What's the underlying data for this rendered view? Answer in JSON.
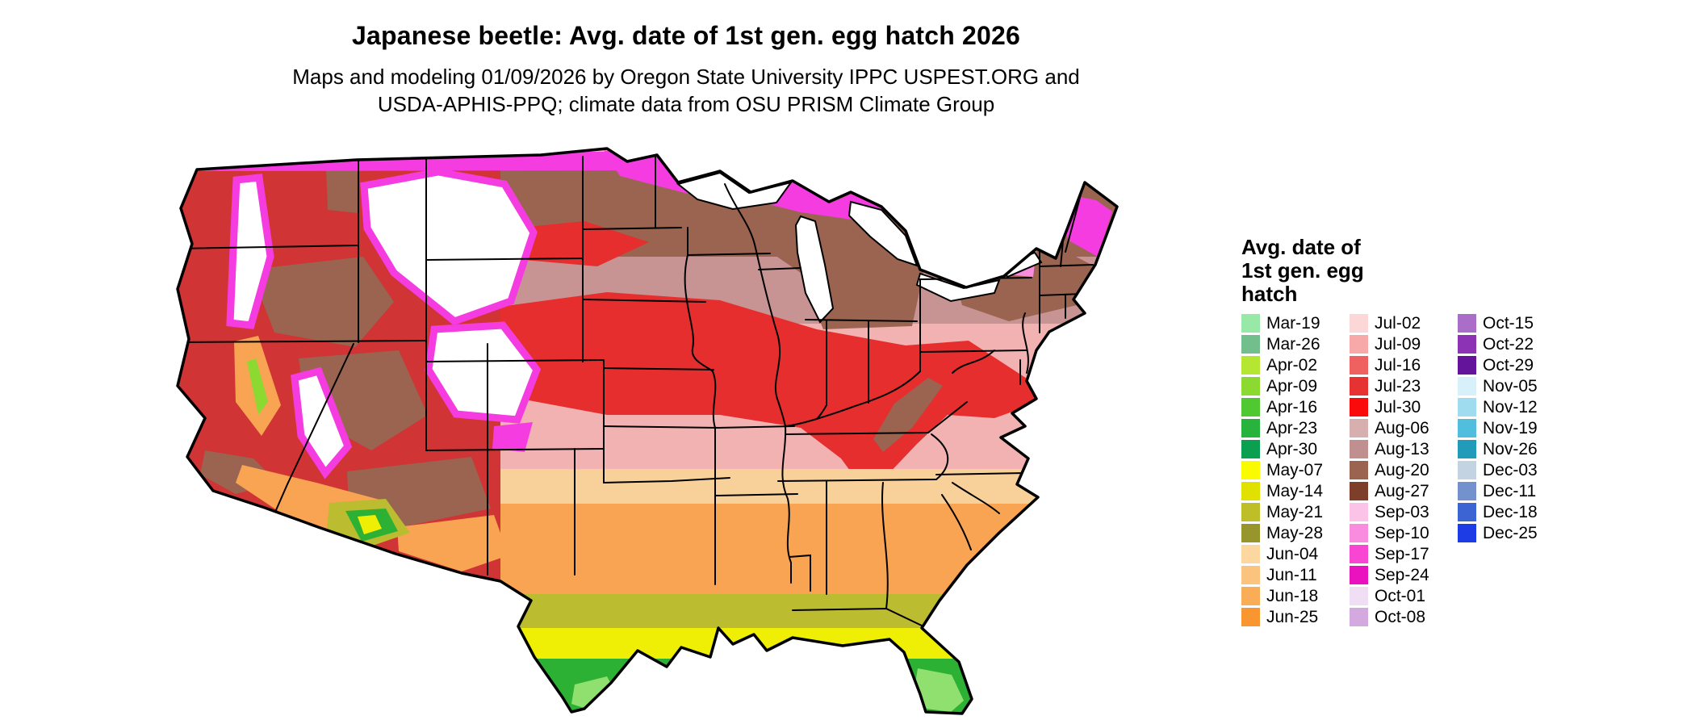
{
  "title": "Japanese beetle: Avg. date of 1st gen. egg hatch 2026",
  "subtitle_line1": "Maps and modeling 01/09/2026 by Oregon State University IPPC USPEST.ORG and",
  "subtitle_line2": "USDA-APHIS-PPQ; climate data from OSU PRISM Climate Group",
  "legend": {
    "title_lines": [
      "Avg. date of",
      "1st gen. egg",
      "hatch"
    ],
    "columns": [
      [
        {
          "label": "Mar-19",
          "color": "#98E8A8"
        },
        {
          "label": "Mar-26",
          "color": "#72BE8C"
        },
        {
          "label": "Apr-02",
          "color": "#B4E632"
        },
        {
          "label": "Apr-09",
          "color": "#8CD932"
        },
        {
          "label": "Apr-16",
          "color": "#50C832"
        },
        {
          "label": "Apr-23",
          "color": "#28B43C"
        },
        {
          "label": "Apr-30",
          "color": "#0AA050"
        },
        {
          "label": "May-07",
          "color": "#FAFA00"
        },
        {
          "label": "May-14",
          "color": "#E1E100"
        },
        {
          "label": "May-21",
          "color": "#BEBE28"
        },
        {
          "label": "May-28",
          "color": "#96962D"
        },
        {
          "label": "Jun-04",
          "color": "#FCD8A0"
        },
        {
          "label": "Jun-11",
          "color": "#FBC47E"
        },
        {
          "label": "Jun-18",
          "color": "#FAAD57"
        },
        {
          "label": "Jun-25",
          "color": "#F99630"
        }
      ],
      [
        {
          "label": "Jul-02",
          "color": "#FBD7D7"
        },
        {
          "label": "Jul-09",
          "color": "#F7A8A8"
        },
        {
          "label": "Jul-16",
          "color": "#EF6060"
        },
        {
          "label": "Jul-23",
          "color": "#E63232"
        },
        {
          "label": "Jul-30",
          "color": "#FA0A0A"
        },
        {
          "label": "Aug-06",
          "color": "#D7AFAF"
        },
        {
          "label": "Aug-13",
          "color": "#C08F8F"
        },
        {
          "label": "Aug-20",
          "color": "#9A6450"
        },
        {
          "label": "Aug-27",
          "color": "#7D3F2A"
        },
        {
          "label": "Sep-03",
          "color": "#FCC3E8"
        },
        {
          "label": "Sep-10",
          "color": "#FA8CE0"
        },
        {
          "label": "Sep-17",
          "color": "#F846D2"
        },
        {
          "label": "Sep-24",
          "color": "#E912BE"
        },
        {
          "label": "Oct-01",
          "color": "#F0DFF4"
        },
        {
          "label": "Oct-08",
          "color": "#D4A9E0"
        }
      ],
      [
        {
          "label": "Oct-15",
          "color": "#AB6EC8"
        },
        {
          "label": "Oct-22",
          "color": "#8C32B4"
        },
        {
          "label": "Oct-29",
          "color": "#64149B"
        },
        {
          "label": "Nov-05",
          "color": "#D7F0FA"
        },
        {
          "label": "Nov-12",
          "color": "#A0DCF0"
        },
        {
          "label": "Nov-19",
          "color": "#50BEDC"
        },
        {
          "label": "Nov-26",
          "color": "#219BB9"
        },
        {
          "label": "Dec-03",
          "color": "#C3D3E1"
        },
        {
          "label": "Dec-11",
          "color": "#7391CD"
        },
        {
          "label": "Dec-18",
          "color": "#3C64D2"
        },
        {
          "label": "Dec-25",
          "color": "#1E3CE6"
        }
      ]
    ]
  },
  "map": {
    "description": "Conterminous US map shaded by average date of first generation egg hatch",
    "palette": {
      "no_data_white": "#FFFFFF",
      "north_brown": "#9A6450",
      "rosy_brown": "#C89393",
      "red": "#E62E2E",
      "light_pink": "#F2B2B2",
      "tan": "#F8D09A",
      "orange": "#F8A452",
      "olive": "#BCBC30",
      "yellow": "#EFEF05",
      "green": "#2DB135",
      "magenta_fringe": "#F53CE0"
    }
  }
}
